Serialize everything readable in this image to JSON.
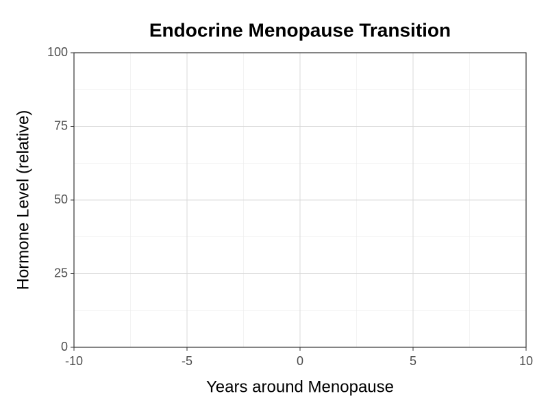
{
  "chart_data": {
    "type": "line",
    "title": "Endocrine Menopause Transition",
    "x_label": "Years around Menopause",
    "y_label": "Hormone Level (relative)",
    "xlim": [
      -10,
      10
    ],
    "xticks": [
      -10,
      -5,
      0,
      5,
      10
    ],
    "ylim": [
      0,
      100
    ],
    "yticks": [
      0,
      25,
      50,
      75,
      100
    ],
    "grid": true
  }
}
